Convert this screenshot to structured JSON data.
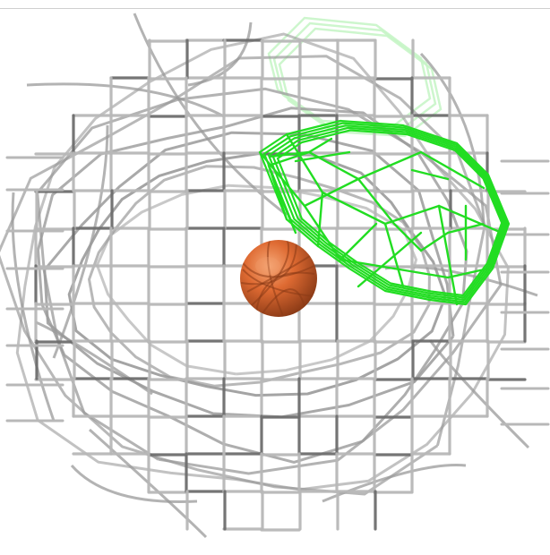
{
  "scene": {
    "background": "#ffffff",
    "grid_color": "#b8b8b8",
    "grid_dark": "#6e6e6e",
    "contour_color": "#9a9a9a",
    "ghost_green": "#c8f5c8",
    "active_green": "#22dd22",
    "sphere_color": "#d9662e",
    "sphere_dark": "#8a3a16",
    "sphere_highlight": "#f29a6a"
  }
}
